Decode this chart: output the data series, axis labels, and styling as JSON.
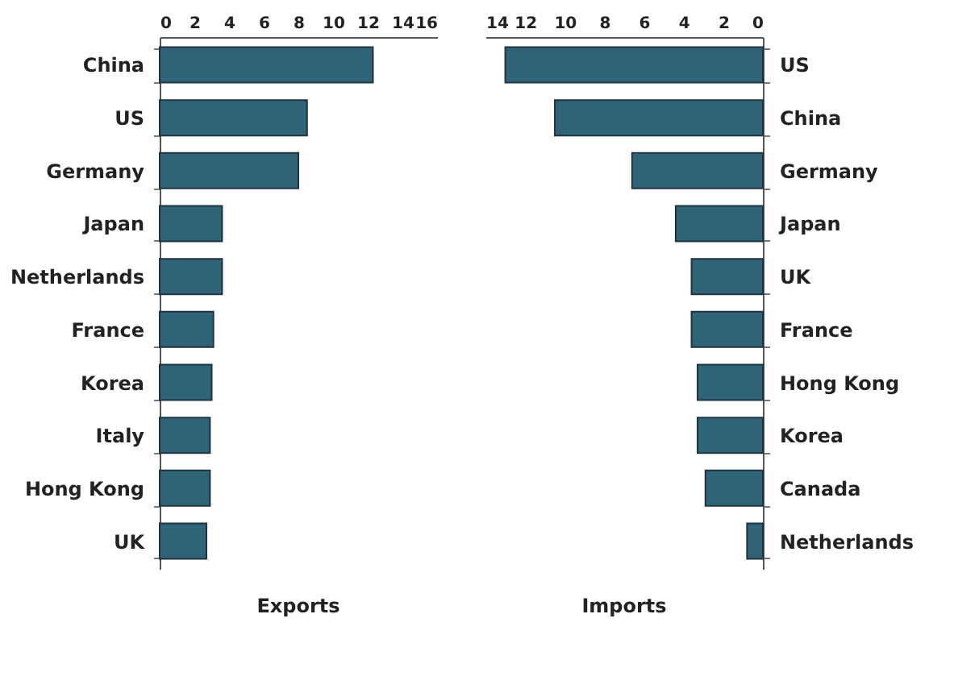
{
  "chart_data": [
    {
      "type": "bar",
      "orientation": "horizontal",
      "xlabel": "Exports",
      "categories": [
        "China",
        "US",
        "Germany",
        "Japan",
        "Netherlands",
        "France",
        "Korea",
        "Italy",
        "Hong Kong",
        "UK"
      ],
      "values": [
        12.3,
        8.5,
        8.0,
        3.6,
        3.6,
        3.1,
        3.0,
        2.9,
        2.9,
        2.7
      ],
      "color": "#2f6478",
      "xlim": [
        0,
        16
      ],
      "xticks": [
        0,
        2,
        4,
        6,
        8,
        10,
        12,
        14,
        16
      ],
      "grid": false
    },
    {
      "type": "bar",
      "orientation": "horizontal",
      "xlabel": "Imports",
      "categories": [
        "US",
        "China",
        "Germany",
        "Japan",
        "UK",
        "France",
        "Hong Kong",
        "Korea",
        "Canada",
        "Netherlands"
      ],
      "values": [
        13.0,
        10.5,
        6.6,
        4.4,
        3.6,
        3.6,
        3.3,
        3.3,
        2.9,
        0.8
      ],
      "color": "#2f6478",
      "xlim": [
        14,
        0
      ],
      "xticks": [
        14,
        12,
        10,
        8,
        6,
        4,
        2,
        0
      ],
      "grid": false
    }
  ]
}
